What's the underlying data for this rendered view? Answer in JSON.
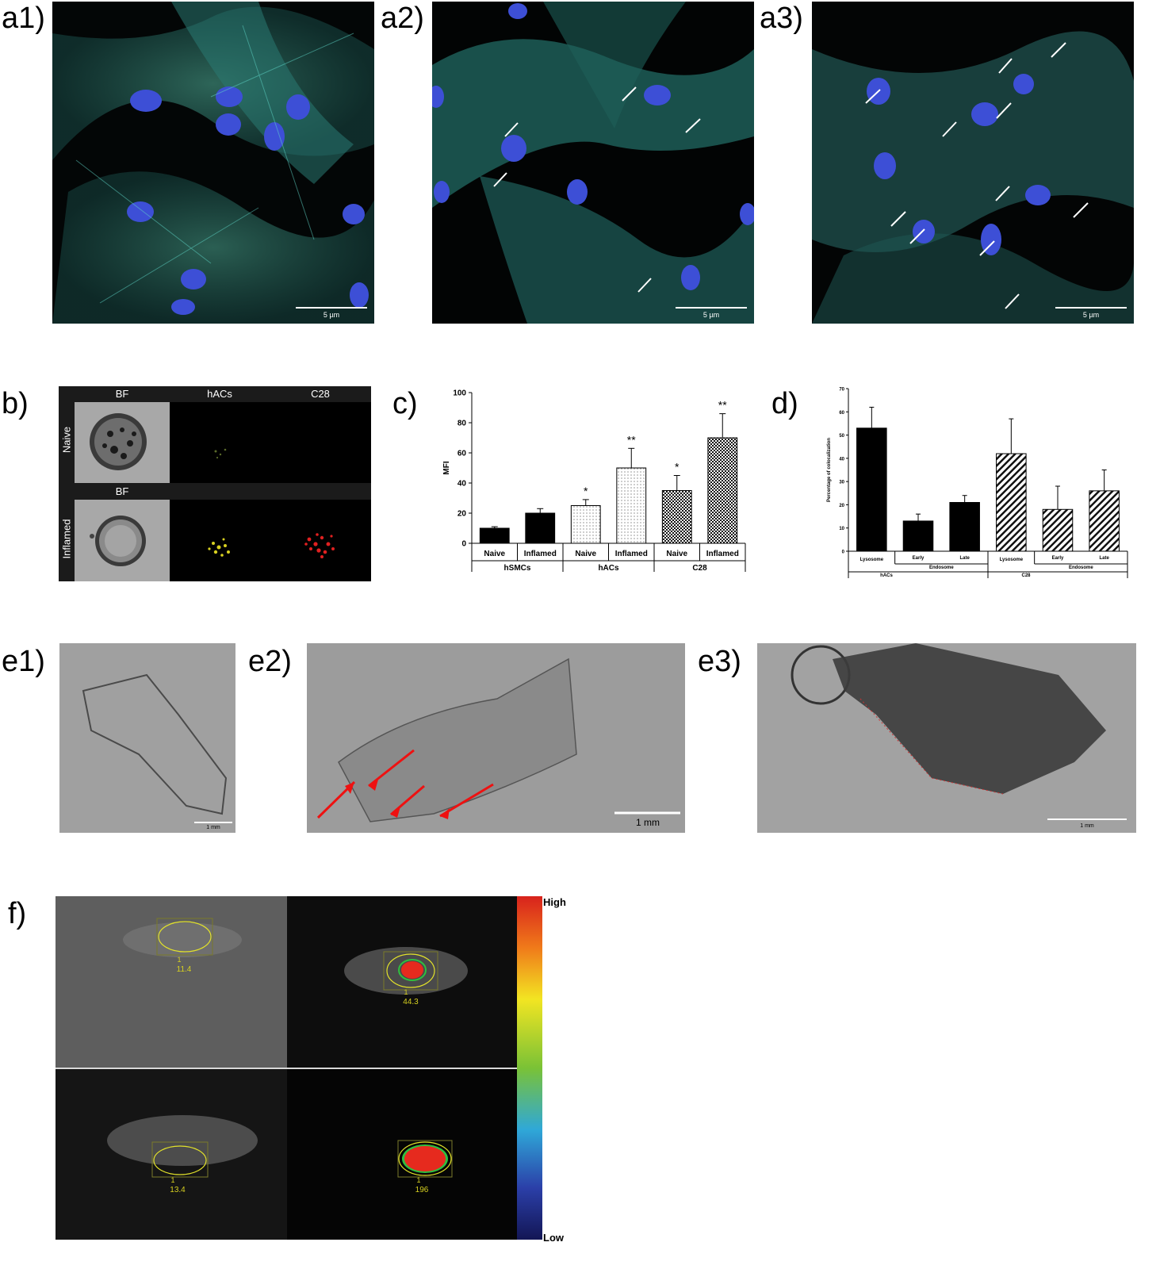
{
  "labels": {
    "a1": "a1)",
    "a2": "a2)",
    "a3": "a3)",
    "b": "b)",
    "c": "c)",
    "d": "d)",
    "e1": "e1)",
    "e2": "e2)",
    "e3": "e3)",
    "f": "f)"
  },
  "panel_a": {
    "scale_bar": "5 µm"
  },
  "panel_b": {
    "col_headers": [
      "BF",
      "hACs",
      "C28"
    ],
    "row2_header": "BF",
    "row_labels": [
      "Naive",
      "Inflamed"
    ]
  },
  "panel_e": {
    "scale_bar": "1 mm"
  },
  "panel_f": {
    "values": [
      "11.4",
      "44.3",
      "13.4",
      "196"
    ],
    "roi_number": "1",
    "colorbar_high": "High",
    "colorbar_low": "Low"
  },
  "chart_data": [
    {
      "type": "bar",
      "panel": "c",
      "ylabel": "MFI",
      "ylim": [
        0,
        100
      ],
      "yticks": [
        0,
        20,
        40,
        60,
        80,
        100
      ],
      "categories": [
        "Naive",
        "Inflamed",
        "Naive",
        "Inflamed",
        "Naive",
        "Inflamed"
      ],
      "groups": [
        "hSMCs",
        "hACs",
        "C28"
      ],
      "values": [
        10,
        20,
        25,
        50,
        35,
        70
      ],
      "errors": [
        1,
        3,
        4,
        13,
        10,
        16
      ],
      "annotations": [
        "",
        "",
        "*",
        "**",
        "*",
        "**"
      ],
      "grid": false
    },
    {
      "type": "bar",
      "panel": "d",
      "ylabel": "Percentage of colocalization",
      "ylim": [
        0,
        70
      ],
      "yticks": [
        0,
        10,
        20,
        30,
        40,
        50,
        60,
        70
      ],
      "categories": [
        "Lysosome",
        "Early",
        "Late",
        "Lysosome",
        "Early",
        "Late"
      ],
      "subgroups": [
        "Endosome",
        "Endosome"
      ],
      "groups": [
        "hACs",
        "C28"
      ],
      "values": [
        53,
        13,
        21,
        42,
        18,
        26
      ],
      "errors": [
        9,
        3,
        3,
        15,
        10,
        9
      ],
      "grid": false
    }
  ]
}
